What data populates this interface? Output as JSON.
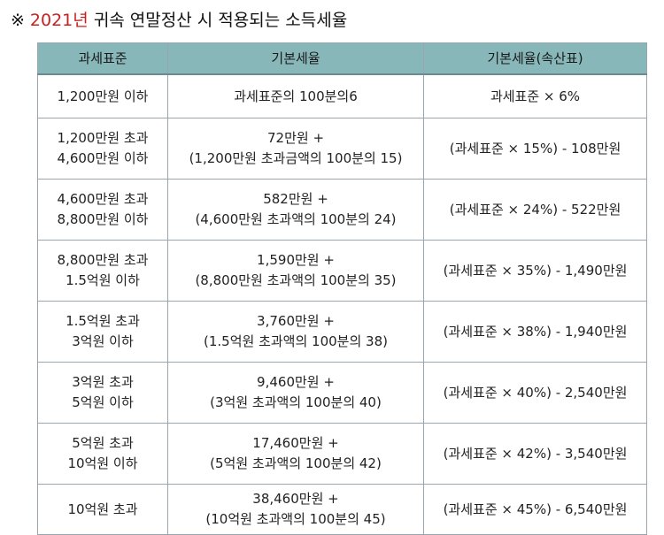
{
  "title": {
    "mark": "※",
    "year": "2021년",
    "rest": "귀속 연말정산 시 적용되는 소득세율"
  },
  "colors": {
    "header_bg": "#87b7b9",
    "year_red": "#c8201e",
    "border": "#9aa6ad"
  },
  "table": {
    "headers": [
      "과세표준",
      "기본세율",
      "기본세율(속산표)"
    ],
    "rows": [
      {
        "base": [
          "1,200만원 이하"
        ],
        "rate": [
          "과세표준의 100분의6"
        ],
        "quick": "과세표준 × 6%"
      },
      {
        "base": [
          "1,200만원 초과",
          "4,600만원 이하"
        ],
        "rate": [
          "72만원 +",
          "(1,200만원 초과금액의 100분의 15)"
        ],
        "quick": "(과세표준 × 15%) - 108만원"
      },
      {
        "base": [
          "4,600만원 초과",
          "8,800만원 이하"
        ],
        "rate": [
          "582만원 +",
          "(4,600만원 초과액의 100분의 24)"
        ],
        "quick": "(과세표준 × 24%) - 522만원"
      },
      {
        "base": [
          "8,800만원 초과",
          "1.5억원 이하"
        ],
        "rate": [
          "1,590만원 +",
          "(8,800만원 초과액의 100분의 35)"
        ],
        "quick": "(과세표준 × 35%) - 1,490만원"
      },
      {
        "base": [
          "1.5억원 초과",
          "3억원 이하"
        ],
        "rate": [
          "3,760만원 +",
          "(1.5억원 초과액의 100분의 38)"
        ],
        "quick": "(과세표준 × 38%) - 1,940만원"
      },
      {
        "base": [
          "3억원 초과",
          "5억원 이하"
        ],
        "rate": [
          "9,460만원 +",
          "(3억원 초과액의 100분의 40)"
        ],
        "quick": "(과세표준 × 40%) - 2,540만원"
      },
      {
        "base": [
          "5억원 초과",
          "10억원 이하"
        ],
        "rate": [
          "17,460만원 +",
          "(5억원 초과액의 100분의 42)"
        ],
        "quick": "(과세표준 × 42%) - 3,540만원"
      },
      {
        "base": [
          "10억원 초과"
        ],
        "rate": [
          "38,460만원 +",
          "(10억원 초과액의 100분의 45)"
        ],
        "quick": "(과세표준 × 45%) - 6,540만원"
      }
    ]
  }
}
